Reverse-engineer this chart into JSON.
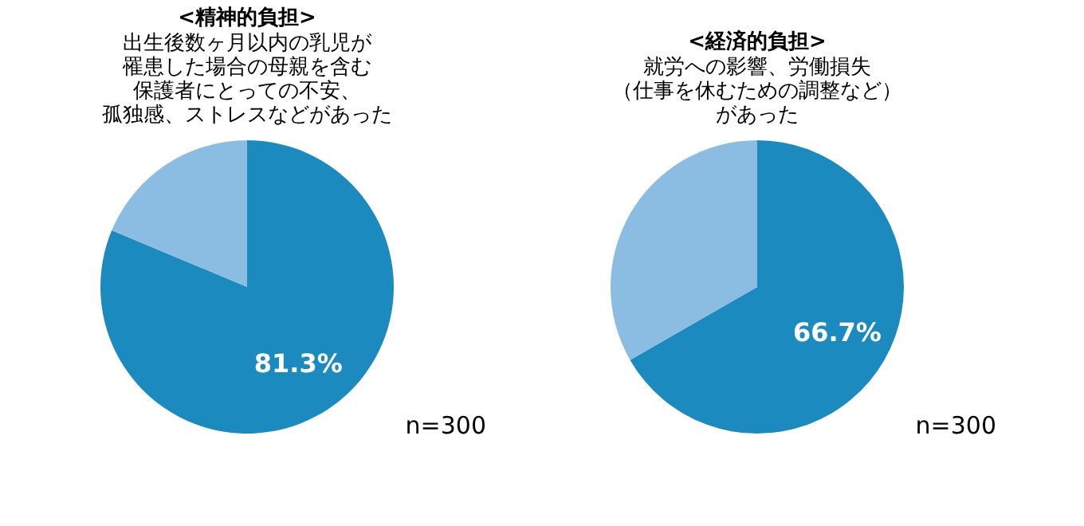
{
  "chart_data": [
    {
      "type": "pie",
      "title": "<精神的負担>",
      "subtitle": [
        "出生後数ヶ月以内の乳児が",
        "罹患した場合の母親を含む",
        "保護者にとっての不安、",
        "孤独感、ストレスなどがあった"
      ],
      "categories": [
        null,
        null
      ],
      "values": [
        81.3,
        18.7
      ],
      "colors": [
        "#1b8bbf",
        "#8bbde2"
      ],
      "value_labels": [
        "81.3%",
        null
      ],
      "annotations": [
        "n=300"
      ]
    },
    {
      "type": "pie",
      "title": "<経済的負担>",
      "subtitle": [
        "就労への影響、労働損失",
        "（仕事を休むための調整など）",
        "があった"
      ],
      "categories": [
        null,
        null
      ],
      "values": [
        66.7,
        33.3
      ],
      "colors": [
        "#1b8bbf",
        "#8bbde2"
      ],
      "value_labels": [
        "66.7%",
        null
      ],
      "annotations": [
        "n=300"
      ]
    }
  ]
}
